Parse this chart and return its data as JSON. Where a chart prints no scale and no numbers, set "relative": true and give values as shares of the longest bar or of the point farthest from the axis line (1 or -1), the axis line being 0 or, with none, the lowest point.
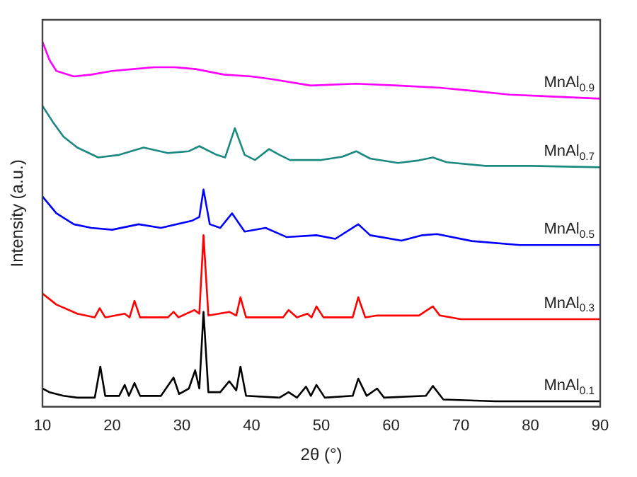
{
  "chart_data": {
    "type": "line",
    "xlabel": "2θ (°)",
    "ylabel": "Intensity (a.u.)",
    "relative": true,
    "xlim": [
      10,
      90
    ],
    "xticks": [
      10,
      20,
      30,
      40,
      50,
      60,
      70,
      80,
      90
    ],
    "tick_labels": "x",
    "grid": false,
    "legend": false,
    "marker": "none",
    "line_style": "solid",
    "series": [
      {
        "name": "MnAl$_{0.9}$",
        "color": "#ff00ff",
        "x": [
          10,
          11,
          12,
          14.5,
          17,
          20,
          23,
          26,
          29,
          32,
          36,
          40,
          43,
          48.5,
          55,
          61,
          67,
          72,
          77,
          83,
          90
        ],
        "values": [
          1.0,
          0.95,
          0.92,
          0.905,
          0.91,
          0.92,
          0.925,
          0.93,
          0.93,
          0.925,
          0.91,
          0.905,
          0.897,
          0.88,
          0.885,
          0.88,
          0.874,
          0.865,
          0.855,
          0.85,
          0.844
        ]
      },
      {
        "name": "MnAl$_{0.7}$",
        "color": "#1a8a80",
        "x": [
          10,
          11.5,
          13,
          15,
          18,
          21,
          24.5,
          28,
          31,
          32.5,
          35,
          36.2,
          37.6,
          39,
          40.5,
          42.5,
          44,
          45.5,
          50,
          53,
          55,
          57,
          61,
          64,
          66,
          68,
          73.5,
          80,
          90
        ],
        "values": [
          0.824,
          0.78,
          0.74,
          0.71,
          0.683,
          0.69,
          0.71,
          0.695,
          0.7,
          0.714,
          0.69,
          0.683,
          0.763,
          0.69,
          0.676,
          0.706,
          0.69,
          0.676,
          0.676,
          0.685,
          0.7,
          0.68,
          0.668,
          0.675,
          0.683,
          0.67,
          0.66,
          0.66,
          0.656
        ]
      },
      {
        "name": "MnAl$_{0.5}$",
        "color": "#0000ff",
        "x": [
          10,
          12,
          14.5,
          17,
          20,
          23.8,
          27,
          31.5,
          32.5,
          33.1,
          34,
          35.5,
          37.2,
          39,
          42,
          45,
          49.3,
          52,
          55.3,
          57,
          61.5,
          64.5,
          66.6,
          71.6,
          78.5,
          90
        ],
        "values": [
          0.576,
          0.53,
          0.5,
          0.49,
          0.485,
          0.5,
          0.49,
          0.51,
          0.52,
          0.595,
          0.5,
          0.49,
          0.53,
          0.48,
          0.49,
          0.465,
          0.47,
          0.46,
          0.5,
          0.47,
          0.455,
          0.47,
          0.473,
          0.454,
          0.443,
          0.443
        ]
      },
      {
        "name": "MnAl$_{0.3}$",
        "color": "#ff0000",
        "x": [
          10,
          12,
          15,
          17.5,
          18.2,
          19,
          21.8,
          22.5,
          23.2,
          24,
          28,
          28.8,
          29.5,
          31.8,
          32.5,
          33.1,
          33.8,
          36.8,
          37.8,
          38.4,
          39.2,
          44.5,
          45.3,
          46.5,
          48,
          48.6,
          49.3,
          50.3,
          54.5,
          55.3,
          56.3,
          58,
          64,
          66,
          67,
          70,
          90
        ],
        "values": [
          0.31,
          0.28,
          0.255,
          0.245,
          0.27,
          0.245,
          0.255,
          0.245,
          0.29,
          0.245,
          0.245,
          0.26,
          0.245,
          0.265,
          0.255,
          0.47,
          0.25,
          0.26,
          0.25,
          0.3,
          0.245,
          0.245,
          0.265,
          0.245,
          0.255,
          0.245,
          0.275,
          0.245,
          0.245,
          0.3,
          0.245,
          0.25,
          0.25,
          0.275,
          0.25,
          0.24,
          0.24
        ]
      },
      {
        "name": "MnAl$_{0.1}$",
        "color": "#000000",
        "x": [
          10,
          11,
          13,
          15,
          17.5,
          18.3,
          19,
          21,
          21.8,
          22.4,
          23.2,
          24,
          27,
          28.8,
          29.6,
          31,
          31.9,
          32.5,
          33.1,
          33.8,
          35.5,
          36.8,
          37.8,
          38.4,
          39.2,
          44,
          45.3,
          46.5,
          47.8,
          48.5,
          49.3,
          50.5,
          54.5,
          55.3,
          56.5,
          58,
          59,
          65,
          66,
          67.5,
          75,
          90
        ],
        "values": [
          0.05,
          0.04,
          0.03,
          0.025,
          0.025,
          0.11,
          0.03,
          0.03,
          0.06,
          0.03,
          0.065,
          0.03,
          0.03,
          0.08,
          0.035,
          0.05,
          0.1,
          0.05,
          0.26,
          0.04,
          0.04,
          0.07,
          0.045,
          0.11,
          0.03,
          0.025,
          0.04,
          0.025,
          0.055,
          0.03,
          0.06,
          0.025,
          0.03,
          0.077,
          0.03,
          0.05,
          0.025,
          0.03,
          0.057,
          0.02,
          0.015,
          0.015
        ]
      }
    ]
  }
}
